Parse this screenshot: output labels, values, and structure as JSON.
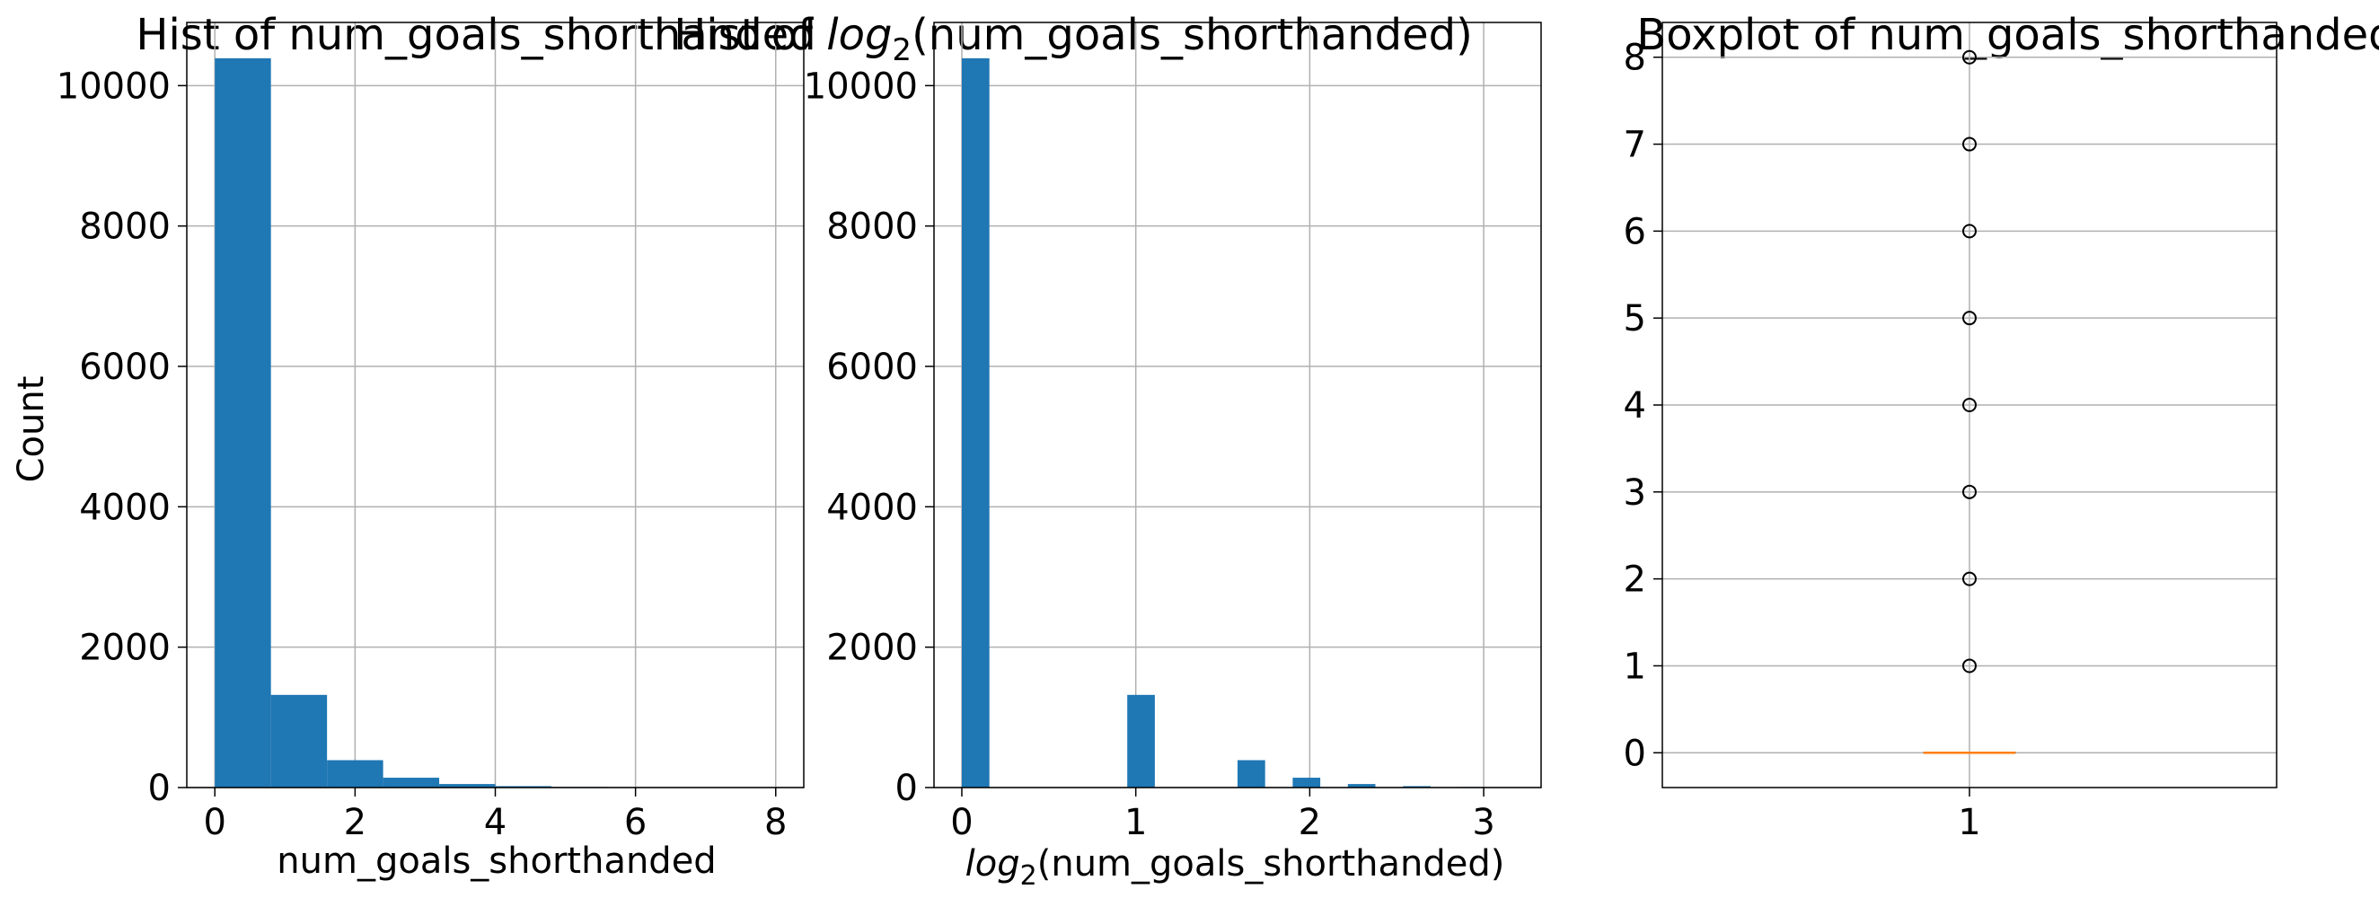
{
  "chart_data": [
    {
      "type": "bar",
      "title": "Hist of num_goals_shorthanded",
      "xlabel": "num_goals_shorthanded",
      "ylabel": "Count",
      "xlim": [
        -0.4,
        8.4
      ],
      "ylim": [
        0,
        10900
      ],
      "xticks": [
        0,
        2,
        4,
        6,
        8
      ],
      "xtick_labels": [
        "0",
        "2",
        "4",
        "6",
        "8"
      ],
      "yticks": [
        0,
        2000,
        4000,
        6000,
        8000,
        10000
      ],
      "ytick_labels": [
        "0",
        "2000",
        "4000",
        "6000",
        "8000",
        "10000"
      ],
      "grid": true,
      "bin_width": 0.8,
      "bin_starts": [
        0,
        0.8,
        1.6,
        2.4,
        3.2,
        4.0,
        4.8,
        5.6,
        6.4,
        7.2
      ],
      "values": [
        10390,
        1320,
        390,
        140,
        50,
        20,
        8,
        4,
        2,
        1
      ],
      "color": "#1f77b4"
    },
    {
      "type": "bar",
      "title_parts": {
        "prefix": "Hist of ",
        "func": "log",
        "sub": "2",
        "arg": "(num_goals_shorthanded)"
      },
      "xlabel_parts": {
        "func": "log",
        "sub": "2",
        "arg": "(num_goals_shorthanded)"
      },
      "xlim": [
        -0.16,
        3.33
      ],
      "ylim": [
        0,
        10900
      ],
      "xticks": [
        0,
        1,
        2,
        3
      ],
      "xtick_labels": [
        "0",
        "1",
        "2",
        "3"
      ],
      "yticks": [
        0,
        2000,
        4000,
        6000,
        8000,
        10000
      ],
      "ytick_labels": [
        "0",
        "2000",
        "4000",
        "6000",
        "8000",
        "10000"
      ],
      "grid": true,
      "bin_width": 0.1585,
      "bin_starts": [
        0,
        0.1585,
        0.317,
        0.4755,
        0.634,
        0.7925,
        0.951,
        1.1095,
        1.268,
        1.4265,
        1.585,
        1.7435,
        1.902,
        2.0605,
        2.219,
        2.3775,
        2.536,
        2.6945,
        2.853,
        3.0115
      ],
      "values": [
        10390,
        0,
        0,
        0,
        0,
        0,
        1320,
        0,
        0,
        0,
        390,
        0,
        140,
        0,
        50,
        0,
        20,
        0,
        8,
        6
      ],
      "color": "#1f77b4"
    },
    {
      "type": "boxplot",
      "title": "Boxplot of num_goals_shorthanded",
      "xticks": [
        1
      ],
      "xtick_labels": [
        "1"
      ],
      "xlim": [
        0.5,
        1.5
      ],
      "ylim": [
        -0.4,
        8.4
      ],
      "yticks": [
        0,
        1,
        2,
        3,
        4,
        5,
        6,
        7,
        8
      ],
      "ytick_labels": [
        "0",
        "1",
        "2",
        "3",
        "4",
        "5",
        "6",
        "7",
        "8"
      ],
      "grid": true,
      "median": 0,
      "q1": 0,
      "q3": 0,
      "whisker_low": 0,
      "whisker_high": 0,
      "outliers": [
        1,
        2,
        3,
        4,
        5,
        6,
        7,
        8
      ],
      "median_color": "#ff7f0e"
    }
  ]
}
